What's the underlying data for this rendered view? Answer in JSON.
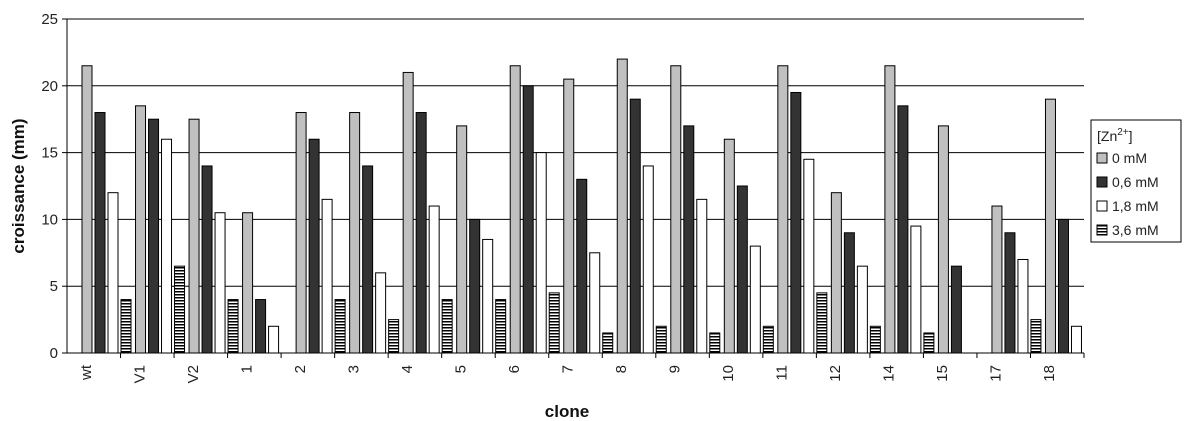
{
  "chart_data": {
    "type": "bar",
    "title": "",
    "xlabel": "clone",
    "ylabel": "croissance (mm)",
    "ylim": [
      0,
      25
    ],
    "yticks": [
      0,
      5,
      10,
      15,
      20,
      25
    ],
    "grid": true,
    "legend_position": "right",
    "legend_title": "[Zn2+]",
    "categories": [
      "wt",
      "V1",
      "V2",
      "1",
      "2",
      "3",
      "4",
      "5",
      "6",
      "7",
      "8",
      "9",
      "10",
      "11",
      "12",
      "14",
      "15",
      "17",
      "18"
    ],
    "series": [
      {
        "name": "0 mM",
        "color": "#c0c0c0",
        "pattern": "solid",
        "values": [
          21.5,
          18.5,
          17.5,
          10.5,
          18,
          18,
          21,
          17,
          21.5,
          20.5,
          22,
          21.5,
          16,
          21.5,
          12,
          21.5,
          17,
          11,
          19
        ]
      },
      {
        "name": "0,6 mM",
        "color": "#333333",
        "pattern": "solid",
        "values": [
          18,
          17.5,
          14,
          4,
          16,
          14,
          18,
          10,
          20,
          13,
          19,
          17,
          12.5,
          19.5,
          9,
          18.5,
          6.5,
          9,
          10
        ]
      },
      {
        "name": "1,8 mM",
        "color": "#ffffff",
        "pattern": "solid",
        "values": [
          12,
          16,
          10.5,
          2,
          11.5,
          6,
          11,
          8.5,
          15,
          7.5,
          14,
          11.5,
          8,
          14.5,
          6.5,
          9.5,
          0,
          7,
          2
        ]
      },
      {
        "name": "3,6 mM",
        "color": "#ffffff",
        "pattern": "horizontal-stripes",
        "values": [
          4,
          6.5,
          4,
          0,
          4,
          2.5,
          4,
          4,
          4.5,
          1.5,
          2,
          1.5,
          2,
          4.5,
          2,
          1.5,
          0,
          2.5,
          0
        ]
      }
    ]
  }
}
